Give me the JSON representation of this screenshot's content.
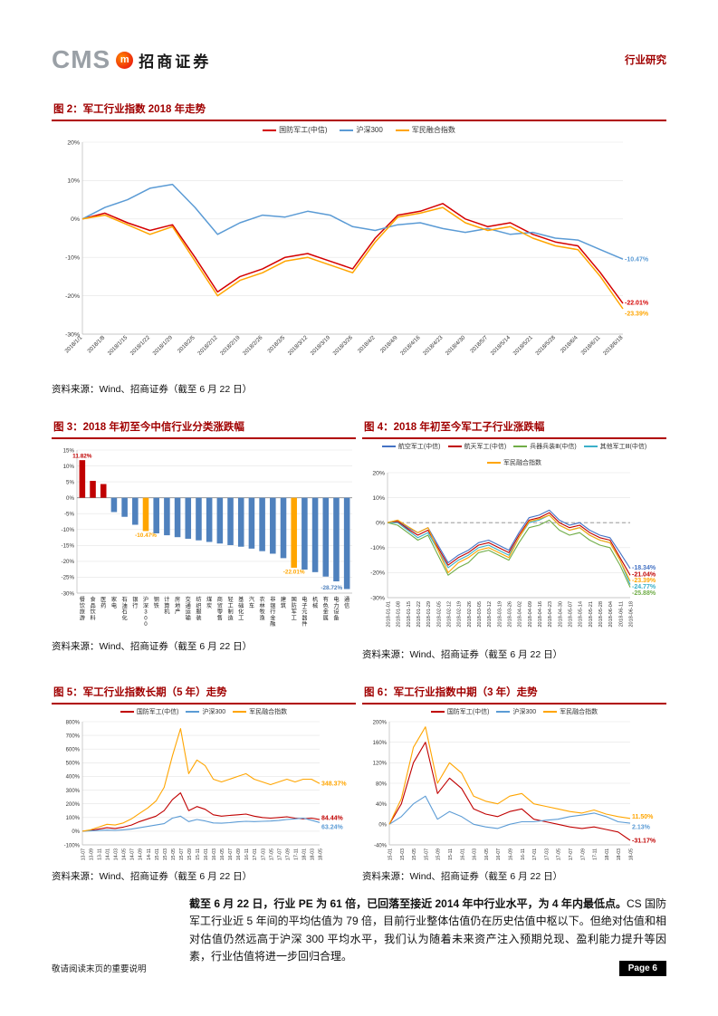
{
  "header": {
    "logo_cms": "CMS",
    "logo_badge": "m",
    "logo_name": "招商证券",
    "right_label": "行业研究"
  },
  "figures": {
    "fig2": {
      "title": "图 2：军工行业指数 2018 年走势",
      "source": "资料来源：Wind、招商证券（截至 6 月 22 日）",
      "chart_data": {
        "type": "line",
        "ylim": [
          -30,
          20
        ],
        "yticks": [
          20,
          10,
          0,
          -10,
          -20,
          -30
        ],
        "margins": {
          "l": 34,
          "r": 48,
          "t": 8,
          "b": 50
        },
        "xrotate": -45,
        "xfont": 6.2,
        "x": [
          "2018/1/1",
          "2018/1/8",
          "2018/1/15",
          "2018/1/22",
          "2018/1/29",
          "2018/2/5",
          "2018/2/12",
          "2018/2/19",
          "2018/2/26",
          "2018/3/5",
          "2018/3/12",
          "2018/3/19",
          "2018/3/26",
          "2018/4/2",
          "2018/4/9",
          "2018/4/16",
          "2018/4/23",
          "2018/4/30",
          "2018/5/7",
          "2018/5/14",
          "2018/5/21",
          "2018/5/28",
          "2018/6/4",
          "2018/6/11",
          "2018/6/18"
        ],
        "series": [
          {
            "name": "国防军工(中信)",
            "color": "#d40000",
            "end_label": "-22.01%",
            "label_dy": -1,
            "width": 1.5,
            "values": [
              0,
              1.5,
              -1,
              -3,
              -1.5,
              -10,
              -19,
              -15,
              -13,
              -10,
              -9,
              -11,
              -13,
              -5,
              1,
              2,
              4,
              0,
              -2,
              -1,
              -4,
              -6,
              -7,
              -14,
              -22.01
            ]
          },
          {
            "name": "沪深300",
            "color": "#5b9bd5",
            "end_label": "-10.47%",
            "label_dy": 0,
            "width": 1.5,
            "values": [
              0,
              3,
              5,
              8,
              9,
              3,
              -4,
              -1,
              1,
              0.5,
              2,
              1,
              -2,
              -3,
              -1.5,
              -1,
              -2.5,
              -3.5,
              -2.5,
              -4,
              -3.5,
              -5,
              -5.5,
              -8,
              -10.47
            ]
          },
          {
            "name": "军民融合指数",
            "color": "#ffa500",
            "end_label": "-23.39%",
            "label_dy": 5,
            "width": 1.5,
            "values": [
              0,
              1,
              -1.5,
              -4,
              -2,
              -11,
              -20,
              -16,
              -14,
              -11,
              -10,
              -12,
              -14,
              -6,
              0.5,
              1.5,
              3,
              -1,
              -3,
              -2,
              -5,
              -7,
              -8,
              -15,
              -23.39
            ]
          }
        ]
      }
    },
    "fig3": {
      "title": "图 3：2018 年初至今中信行业分类涨跌幅",
      "source": "资料来源：Wind、招商证券（截至 6 月 22 日）",
      "chart_data": {
        "type": "bar",
        "ylim": [
          -30,
          15
        ],
        "yticks": [
          15,
          10,
          5,
          0,
          -5,
          -10,
          -15,
          -20,
          -25,
          -30
        ],
        "margins": {
          "l": 28,
          "r": 4,
          "t": 12,
          "b": 48
        },
        "yfont": 6.2,
        "bar_color": "#4f81bd",
        "bars": [
          {
            "label": "餐饮旅游",
            "value": 11.82,
            "color": "#c00000",
            "show_label": true
          },
          {
            "label": "食品饮料",
            "value": 5.3,
            "color": "#c00000"
          },
          {
            "label": "医药",
            "value": 4.3,
            "color": "#c00000"
          },
          {
            "label": "家电",
            "value": -4.5
          },
          {
            "label": "石油石化",
            "value": -6.0
          },
          {
            "label": "银行",
            "value": -8.5
          },
          {
            "label": "沪深300",
            "value": -10.47,
            "color": "#ffa500",
            "show_label": true
          },
          {
            "label": "钢铁",
            "value": -11.2
          },
          {
            "label": "计算机",
            "value": -11.8
          },
          {
            "label": "房地产",
            "value": -12.4
          },
          {
            "label": "交通运输",
            "value": -12.9
          },
          {
            "label": "纺织服装",
            "value": -13.4
          },
          {
            "label": "煤炭",
            "value": -13.9
          },
          {
            "label": "商贸零售",
            "value": -14.4
          },
          {
            "label": "轻工制造",
            "value": -14.9
          },
          {
            "label": "基础化工",
            "value": -15.4
          },
          {
            "label": "汽车",
            "value": -16.0
          },
          {
            "label": "农林牧渔",
            "value": -16.8
          },
          {
            "label": "非银行金融",
            "value": -17.6
          },
          {
            "label": "建筑",
            "value": -19.0
          },
          {
            "label": "国防军工",
            "value": -22.01,
            "color": "#ffa500",
            "show_label": true
          },
          {
            "label": "电子元器件",
            "value": -22.6
          },
          {
            "label": "机械",
            "value": -23.4
          },
          {
            "label": "有色金属",
            "value": -24.8
          },
          {
            "label": "电力设备",
            "value": -26.3
          },
          {
            "label": "通信",
            "value": -28.72,
            "show_label": true,
            "label_dx": -5,
            "label_dy": -6
          }
        ]
      }
    },
    "fig4": {
      "title": "图 4：2018 年初至今军工子行业涨跌幅",
      "source": "资料来源：Wind、招商证券（截至 6 月 22 日）",
      "chart_data": {
        "type": "line",
        "ylim": [
          -30,
          20
        ],
        "yticks": [
          20,
          10,
          0,
          -10,
          -20,
          -30
        ],
        "zero_dash": true,
        "margins": {
          "l": 28,
          "r": 40,
          "t": 6,
          "b": 52
        },
        "xrotate": -90,
        "xfont": 5.6,
        "x": [
          "2018-01-01",
          "2018-01-08",
          "2018-01-15",
          "2018-01-22",
          "2018-01-29",
          "2018-02-05",
          "2018-02-12",
          "2018-02-19",
          "2018-02-26",
          "2018-03-05",
          "2018-03-12",
          "2018-03-19",
          "2018-03-26",
          "2018-04-02",
          "2018-04-09",
          "2018-04-16",
          "2018-04-23",
          "2018-04-30",
          "2018-05-07",
          "2018-05-14",
          "2018-05-21",
          "2018-05-28",
          "2018-06-04",
          "2018-06-11",
          "2018-06-18"
        ],
        "series": [
          {
            "name": "航空军工(中信)",
            "color": "#4472c4",
            "end_label": "-18.34%",
            "width": 1.1,
            "label_dy": -1,
            "values": [
              0,
              1,
              -2,
              -4,
              -2,
              -9,
              -16,
              -13,
              -11,
              -8,
              -7,
              -9,
              -11,
              -4,
              2,
              3,
              5,
              1,
              -1,
              0,
              -3,
              -5,
              -6,
              -12,
              -18.34
            ]
          },
          {
            "name": "航天军工(中信)",
            "color": "#c00000",
            "end_label": "-21.04%",
            "width": 1.1,
            "label_dy": -1,
            "values": [
              0,
              0.5,
              -2.5,
              -5,
              -3,
              -10,
              -17,
              -14,
              -12,
              -9,
              -8,
              -10,
              -12,
              -5,
              1,
              2,
              4,
              0,
              -2,
              -1,
              -4,
              -6,
              -7,
              -14,
              -21.04
            ]
          },
          {
            "name": "兵器兵装Ⅲ(中信)",
            "color": "#70ad47",
            "end_label": "-25.88%",
            "width": 1.1,
            "label_dy": 6,
            "values": [
              0,
              -1,
              -4,
              -7,
              -5,
              -13,
              -21,
              -18,
              -16,
              -12,
              -11,
              -13,
              -15,
              -8,
              -2,
              -1,
              1,
              -3,
              -5,
              -4,
              -7,
              -9,
              -10,
              -17,
              -25.88
            ]
          },
          {
            "name": "其他军工Ⅲ(中信)",
            "color": "#3bb0c9",
            "end_label": "-24.77%",
            "width": 1.1,
            "label_dy": 2,
            "values": [
              0,
              0,
              -3,
              -6,
              -4,
              -11,
              -18,
              -15,
              -13,
              -10,
              -9,
              -11,
              -13,
              -6,
              0,
              1,
              3,
              -1,
              -3,
              -2,
              -5,
              -7,
              -8,
              -15,
              -24.77
            ]
          },
          {
            "name": "军民融合指数",
            "color": "#ffa500",
            "end_label": "-23.39%",
            "width": 1.1,
            "label_dy": -1,
            "values": [
              0,
              1,
              -1.5,
              -4,
              -2,
              -11,
              -20,
              -16,
              -14,
              -11,
              -10,
              -12,
              -14,
              -6,
              0.5,
              1.5,
              3,
              -1,
              -3,
              -2,
              -5,
              -7,
              -8,
              -15,
              -23.39
            ]
          }
        ]
      }
    },
    "fig5": {
      "title": "图 5：军工行业指数长期（5 年）走势",
      "source": "资料来源：Wind、招商证券（截至 6 月 22 日）",
      "chart_data": {
        "type": "line",
        "ylim": [
          -100,
          800
        ],
        "yticks": [
          800,
          700,
          600,
          500,
          400,
          300,
          200,
          100,
          0,
          -100
        ],
        "margins": {
          "l": 34,
          "r": 40,
          "t": 6,
          "b": 24
        },
        "xrotate": -90,
        "xfont": 5.2,
        "yfont": 6,
        "x": [
          "13-07",
          "13-09",
          "13-11",
          "14-01",
          "14-03",
          "14-05",
          "14-07",
          "14-09",
          "14-11",
          "15-01",
          "15-03",
          "15-05",
          "15-07",
          "15-09",
          "15-11",
          "16-01",
          "16-03",
          "16-05",
          "16-07",
          "16-09",
          "16-11",
          "17-01",
          "17-03",
          "17-05",
          "17-07",
          "17-09",
          "17-11",
          "18-01",
          "18-03",
          "18-05"
        ],
        "series": [
          {
            "name": "国防军工(中信)",
            "color": "#c00000",
            "end_label": "84.44%",
            "width": 1.1,
            "label_dy": -2,
            "values": [
              0,
              5,
              15,
              25,
              20,
              30,
              45,
              70,
              90,
              110,
              150,
              230,
              280,
              150,
              180,
              160,
              120,
              110,
              115,
              120,
              125,
              110,
              100,
              95,
              100,
              105,
              95,
              90,
              95,
              84.44
            ]
          },
          {
            "name": "沪深300",
            "color": "#5b9bd5",
            "end_label": "63.24%",
            "width": 1.1,
            "label_dy": 5,
            "values": [
              0,
              2,
              5,
              8,
              6,
              10,
              15,
              25,
              35,
              45,
              55,
              95,
              110,
              70,
              85,
              75,
              60,
              58,
              62,
              68,
              72,
              70,
              72,
              74,
              78,
              85,
              90,
              95,
              80,
              63.24
            ]
          },
          {
            "name": "军民融合指数",
            "color": "#ffa500",
            "end_label": "348.37%",
            "width": 1.1,
            "label_dy": 0,
            "values": [
              0,
              10,
              30,
              50,
              45,
              60,
              90,
              130,
              170,
              220,
              320,
              550,
              750,
              420,
              520,
              480,
              380,
              360,
              380,
              400,
              420,
              380,
              360,
              340,
              360,
              380,
              360,
              380,
              380,
              348.37
            ]
          }
        ]
      }
    },
    "fig6": {
      "title": "图 6：军工行业指数中期（3 年）走势",
      "source": "资料来源：Wind、招商证券（截至 6 月 22 日）",
      "chart_data": {
        "type": "line",
        "ylim": [
          -40,
          200
        ],
        "yticks": [
          200,
          160,
          120,
          80,
          40,
          0,
          -40
        ],
        "margins": {
          "l": 30,
          "r": 40,
          "t": 6,
          "b": 24
        },
        "xrotate": -90,
        "xfont": 5.2,
        "yfont": 6,
        "x": [
          "15-01",
          "15-03",
          "15-05",
          "15-07",
          "15-09",
          "15-11",
          "16-01",
          "16-03",
          "16-05",
          "16-07",
          "16-09",
          "16-11",
          "17-01",
          "17-03",
          "17-05",
          "17-07",
          "17-09",
          "17-11",
          "18-01",
          "18-03",
          "18-05"
        ],
        "series": [
          {
            "name": "国防军工(中信)",
            "color": "#c00000",
            "end_label": "-31.17%",
            "width": 1.1,
            "label_dy": 0,
            "values": [
              0,
              40,
              120,
              160,
              60,
              90,
              70,
              30,
              20,
              15,
              25,
              30,
              10,
              5,
              0,
              -5,
              -8,
              -5,
              -10,
              -15,
              -31.17
            ]
          },
          {
            "name": "沪深300",
            "color": "#5b9bd5",
            "end_label": "2.13%",
            "width": 1.1,
            "label_dy": 4,
            "values": [
              0,
              15,
              40,
              55,
              10,
              25,
              15,
              0,
              -5,
              -8,
              0,
              5,
              5,
              8,
              10,
              15,
              18,
              22,
              15,
              5,
              2.13
            ]
          },
          {
            "name": "军民融合指数",
            "color": "#ffa500",
            "end_label": "11.50%",
            "width": 1.1,
            "label_dy": -2,
            "values": [
              0,
              50,
              150,
              190,
              80,
              120,
              100,
              55,
              45,
              40,
              55,
              60,
              40,
              35,
              30,
              25,
              22,
              28,
              20,
              15,
              11.5
            ]
          }
        ]
      }
    }
  },
  "paragraph": {
    "bold": "截至 6 月 22 日，行业 PE 为 61 倍，已回落至接近 2014 年中行业水平，为 4 年内最低点。",
    "rest": "CS 国防军工行业近 5 年间的平均估值为 79 倍，目前行业整体估值仍在历史估值中枢以下。但绝对估值和相对估值仍然远高于沪深 300 平均水平，我们认为随着未来资产注入预期兑现、盈利能力提升等因素，行业估值将进一步回归合理。"
  },
  "footer": {
    "disclaimer": "敬请阅读末页的重要说明",
    "page_label": "Page 6"
  }
}
